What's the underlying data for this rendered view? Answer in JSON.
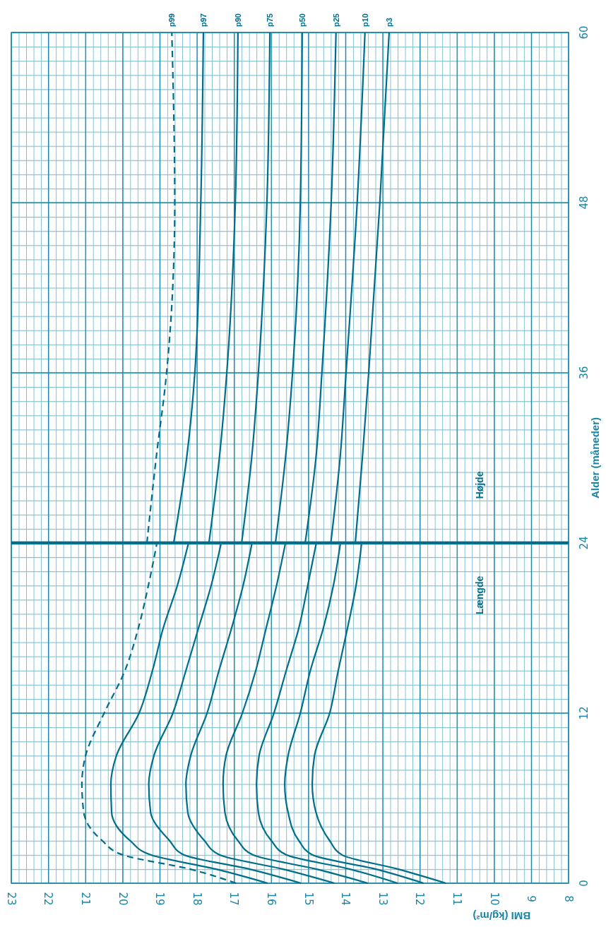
{
  "chart_data": {
    "type": "line",
    "xlabel": "BMI (kg/m²)",
    "ylabel": "Alder (måneder)",
    "series": [
      {
        "name": "p99",
        "color": "#006e8a",
        "line_style": "dashed",
        "x": [
          16.95,
          18.2,
          20.0,
          20.55,
          21.05,
          21.1,
          21.0,
          20.5,
          19.94,
          19.58,
          19.31,
          19.08,
          null,
          19.35,
          19.1,
          18.82,
          18.6,
          18.68
        ],
        "values": [
          0,
          1,
          2,
          3,
          5,
          7,
          9,
          12,
          15,
          18,
          21,
          24,
          null,
          24,
          30,
          36,
          48,
          60
        ]
      },
      {
        "name": "p97",
        "color": "#006e8a",
        "x": [
          16.1,
          17.5,
          19.25,
          19.8,
          20.3,
          20.32,
          20.17,
          19.56,
          19.2,
          18.91,
          18.53,
          18.23,
          null,
          18.63,
          18.28,
          18.06,
          17.9,
          17.83
        ],
        "values": [
          0,
          1,
          2,
          3,
          5,
          7,
          9,
          12,
          15,
          18,
          21,
          24,
          null,
          24,
          30,
          36,
          48,
          60
        ]
      },
      {
        "name": "p90",
        "color": "#006e8a",
        "x": [
          15.2,
          16.6,
          18.36,
          18.74,
          19.25,
          19.3,
          19.16,
          18.65,
          18.3,
          17.96,
          17.62,
          17.35,
          null,
          17.68,
          17.4,
          17.2,
          16.97,
          16.9
        ],
        "values": [
          0,
          1,
          2,
          3,
          5,
          7,
          9,
          12,
          15,
          18,
          21,
          24,
          null,
          24,
          30,
          36,
          48,
          60
        ]
      },
      {
        "name": "p75",
        "color": "#006e8a",
        "x": [
          14.3,
          15.7,
          17.4,
          17.8,
          18.25,
          18.3,
          18.17,
          17.73,
          17.41,
          17.07,
          16.76,
          16.52,
          null,
          16.8,
          16.53,
          16.35,
          16.12,
          16.04
        ],
        "values": [
          0,
          1,
          2,
          3,
          5,
          7,
          9,
          12,
          15,
          18,
          21,
          24,
          null,
          24,
          30,
          36,
          48,
          60
        ]
      },
      {
        "name": "p50",
        "color": "#006e8a",
        "x": [
          13.4,
          14.8,
          16.5,
          16.9,
          17.25,
          17.3,
          17.22,
          16.78,
          16.42,
          16.14,
          15.86,
          15.62,
          null,
          15.89,
          15.62,
          15.43,
          15.22,
          15.17
        ],
        "values": [
          0,
          1,
          2,
          3,
          5,
          7,
          9,
          12,
          15,
          18,
          21,
          24,
          null,
          24,
          30,
          36,
          48,
          60
        ]
      },
      {
        "name": "p25",
        "color": "#006e8a",
        "x": [
          12.6,
          13.9,
          15.6,
          16.0,
          16.35,
          16.4,
          16.33,
          15.93,
          15.6,
          15.26,
          15.02,
          14.79,
          null,
          15.09,
          14.8,
          14.64,
          14.39,
          14.26
        ],
        "values": [
          0,
          1,
          2,
          3,
          5,
          7,
          9,
          12,
          15,
          18,
          21,
          24,
          null,
          24,
          30,
          36,
          48,
          60
        ]
      },
      {
        "name": "p10",
        "color": "#006e8a",
        "x": [
          11.9,
          13.2,
          14.9,
          15.26,
          15.55,
          15.64,
          15.55,
          15.22,
          14.95,
          14.6,
          14.33,
          14.14,
          null,
          14.4,
          14.15,
          13.99,
          13.69,
          13.48
        ],
        "values": [
          0,
          1,
          2,
          3,
          5,
          7,
          9,
          12,
          15,
          18,
          21,
          24,
          null,
          24,
          30,
          36,
          48,
          60
        ]
      },
      {
        "name": "p3",
        "color": "#006e8a",
        "x": [
          11.3,
          12.6,
          14.1,
          14.43,
          14.8,
          14.9,
          14.84,
          14.43,
          14.2,
          13.95,
          13.72,
          13.57,
          null,
          13.74,
          13.55,
          13.38,
          13.08,
          12.83
        ],
        "values": [
          0,
          1,
          2,
          3,
          5,
          7,
          9,
          12,
          15,
          18,
          21,
          24,
          null,
          24,
          30,
          36,
          48,
          60
        ]
      }
    ],
    "xlim": [
      23,
      8
    ],
    "xticks": [
      23,
      22,
      21,
      20,
      19,
      18,
      17,
      16,
      15,
      14,
      13,
      12,
      11,
      10,
      9,
      8
    ],
    "ylim": [
      0,
      60
    ],
    "yticks": [
      0,
      12,
      24,
      36,
      48,
      60
    ],
    "grid": true,
    "legend": false,
    "marker": "none",
    "ref_lines": [
      {
        "axis": "y",
        "value": 24,
        "color": "#006e8a"
      }
    ],
    "annotations": [
      "Længde",
      "Højde"
    ]
  }
}
